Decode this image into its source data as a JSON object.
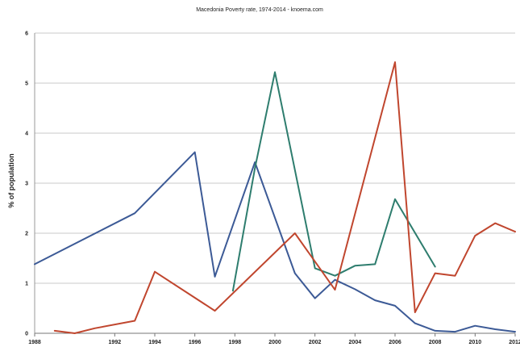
{
  "chart_data": {
    "type": "line",
    "title": "Macedonia Poverty rate, 1974-2014 - knoema.com",
    "xlabel": "",
    "ylabel": "% of population",
    "xlim": [
      1988,
      2012
    ],
    "ylim": [
      0,
      6
    ],
    "x_ticks": [
      1988,
      1992,
      1994,
      1996,
      1998,
      2000,
      2002,
      2004,
      2006,
      2008,
      2010,
      2012
    ],
    "x_tick_labels": [
      "1988",
      "1992",
      "1994",
      "1996",
      "1998",
      "2000",
      "2002",
      "2004",
      "2006",
      "2008",
      "2010",
      "2012"
    ],
    "y_ticks": [
      0,
      1,
      2,
      3,
      4,
      5,
      6
    ],
    "y_tick_labels": [
      "0",
      "1",
      "2",
      "3",
      "4",
      "5",
      "6"
    ],
    "grid": "horizontal",
    "series": [
      {
        "color": "#3c5a96",
        "x": [
          1988,
          1993,
          1996,
          1997,
          1999,
          2001,
          2002,
          2003,
          2004,
          2005,
          2006,
          2007,
          2008,
          2009,
          2010,
          2011,
          2012
        ],
        "y": [
          1.38,
          2.4,
          3.62,
          1.13,
          3.42,
          1.2,
          0.7,
          1.07,
          0.88,
          0.66,
          0.55,
          0.2,
          0.05,
          0.03,
          0.15,
          0.08,
          0.03
        ]
      },
      {
        "color": "#2e7d6e",
        "x": [
          1997.9,
          1999,
          2000,
          2002,
          2003,
          2004,
          2005,
          2006,
          2008
        ],
        "y": [
          0.85,
          3.3,
          5.22,
          1.3,
          1.15,
          1.35,
          1.38,
          2.68,
          1.33
        ]
      },
      {
        "color": "#c0462e",
        "x": [
          1989,
          1990,
          1991,
          1993,
          1994,
          1997,
          2001,
          2003,
          2006,
          2007,
          2008,
          2009,
          2010,
          2011,
          2012
        ],
        "y": [
          0.05,
          0.0,
          0.1,
          0.25,
          1.23,
          0.45,
          2.0,
          0.87,
          5.42,
          0.42,
          1.2,
          1.15,
          1.95,
          2.2,
          2.03
        ]
      }
    ]
  }
}
